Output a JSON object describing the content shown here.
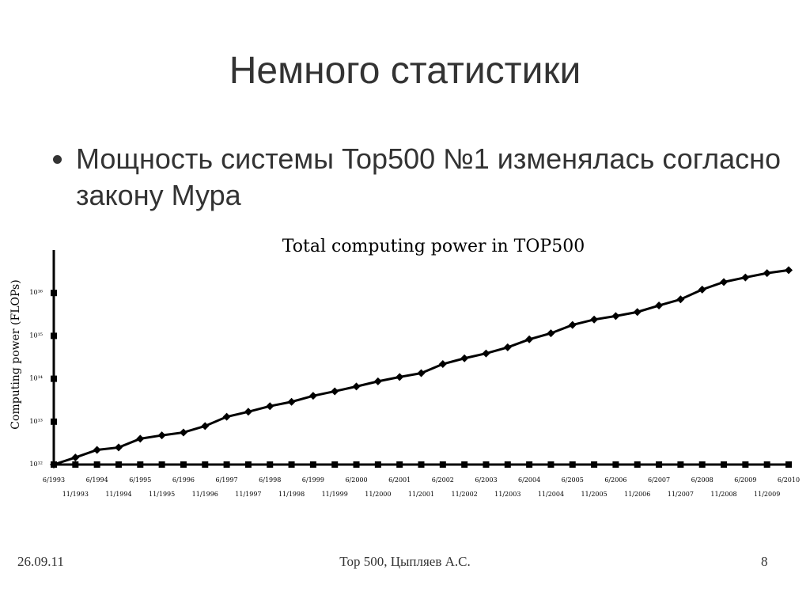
{
  "title": "Немного статистики",
  "bullet": "Мощность системы Top500 №1 изменялась согласно закону Мура",
  "footer": {
    "date": "26.09.11",
    "center": "Top 500, Цыпляев А.С.",
    "page": "8"
  },
  "chart_data": {
    "type": "line",
    "title": "Total computing power in TOP500",
    "y_label": "Computing power (FLOPs)",
    "log_y": true,
    "color": "#000000",
    "categories": [
      "6/1993",
      "11/1993",
      "6/1994",
      "11/1994",
      "6/1995",
      "11/1995",
      "6/1996",
      "11/1996",
      "6/1997",
      "11/1997",
      "6/1998",
      "11/1998",
      "6/1999",
      "11/1999",
      "6/2000",
      "11/2000",
      "6/2001",
      "11/2001",
      "6/2002",
      "11/2002",
      "6/2003",
      "11/2003",
      "6/2004",
      "11/2004",
      "6/2005",
      "11/2005",
      "6/2006",
      "11/2006",
      "6/2007",
      "11/2007",
      "6/2008",
      "11/2008",
      "6/2009",
      "11/2009",
      "6/2010"
    ],
    "values": [
      1000000000000.0,
      1460000000000.0,
      2200000000000.0,
      2500000000000.0,
      4000000000000.0,
      4800000000000.0,
      5600000000000.0,
      7900000000000.0,
      13000000000000.0,
      17000000000000.0,
      23000000000000.0,
      29000000000000.0,
      40000000000000.0,
      51000000000000.0,
      66000000000000.0,
      87000000000000.0,
      110000000000000.0,
      135000000000000.0,
      220000000000000.0,
      300000000000000.0,
      390000000000000.0,
      540000000000000.0,
      830000000000000.0,
      1150000000000000.0,
      1800000000000000.0,
      2400000000000000.0,
      2900000000000000.0,
      3600000000000000.0,
      5100000000000000.0,
      7100000000000000.0,
      1.2e+16,
      1.8e+16,
      2.3e+16,
      2.9e+16,
      3.4e+16
    ],
    "ylim": [
      1000000000000.0,
      1e+17
    ],
    "yticks": [
      {
        "value": 1000000000000.0,
        "label": "10¹²"
      },
      {
        "value": 10000000000000.0,
        "label": "10¹³"
      },
      {
        "value": 100000000000000.0,
        "label": "10¹⁴"
      },
      {
        "value": 1000000000000000.0,
        "label": "10¹⁵"
      },
      {
        "value": 1e+16,
        "label": "10¹⁶"
      }
    ]
  }
}
